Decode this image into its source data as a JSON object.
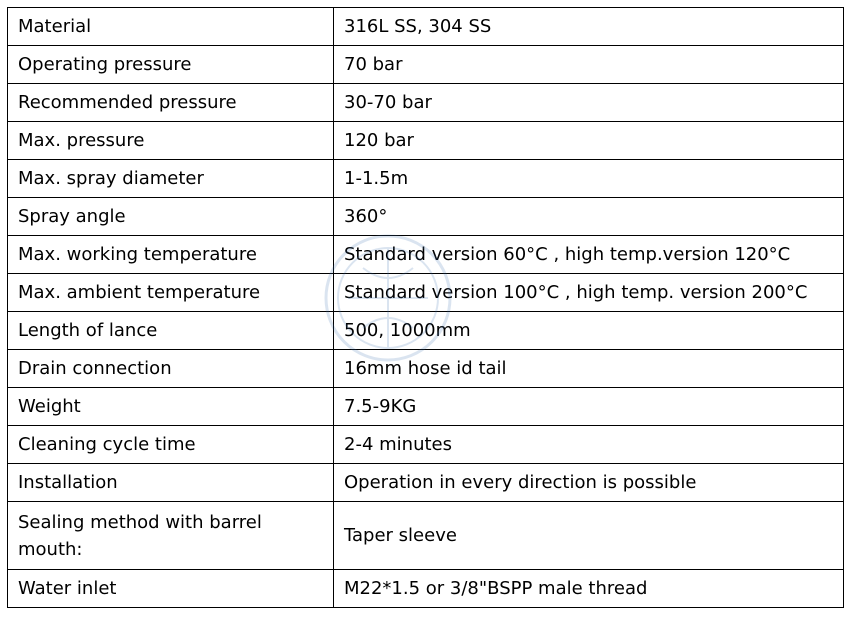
{
  "spec_table": {
    "rows": [
      {
        "label": "Material",
        "value": "316L SS, 304 SS"
      },
      {
        "label": "Operating pressure",
        "value": "70 bar"
      },
      {
        "label": "Recommended pressure",
        "value": "30-70 bar"
      },
      {
        "label": "Max. pressure",
        "value": "120 bar"
      },
      {
        "label": "Max. spray diameter",
        "value": "1-1.5m"
      },
      {
        "label": "Spray angle",
        "value": "360°"
      },
      {
        "label": "Max. working temperature",
        "value": "Standard version 60°C , high temp.version 120°C"
      },
      {
        "label": "Max. ambient temperature",
        "value": "Standard version 100°C , high temp. version 200°C"
      },
      {
        "label": "Length of lance",
        "value": "500, 1000mm"
      },
      {
        "label": "Drain connection",
        "value": "16mm hose id tail"
      },
      {
        "label": "Weight",
        "value": "7.5-9KG"
      },
      {
        "label": "Cleaning cycle time",
        "value": "2-4 minutes"
      },
      {
        "label": "Installation",
        "value": "Operation in every direction is possible"
      },
      {
        "label": "Sealing method with barrel mouth:",
        "value": "Taper sleeve"
      },
      {
        "label": "Water inlet",
        "value": "M22*1.5 or 3/8\"BSPP male thread"
      }
    ]
  },
  "colors": {
    "border": "#000000",
    "text": "#000000",
    "background": "#ffffff",
    "watermark": "#3a6fb0"
  }
}
